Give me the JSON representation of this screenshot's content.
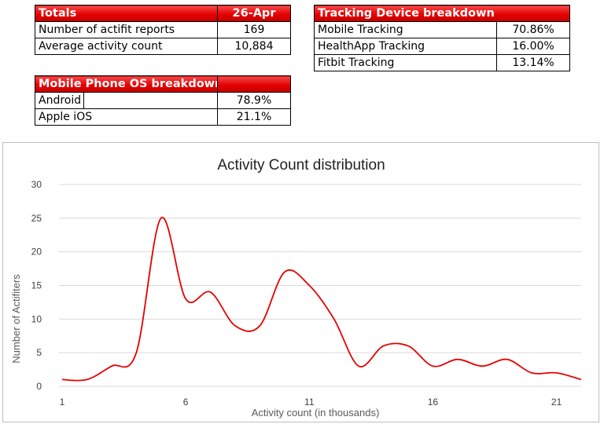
{
  "totals": {
    "header": "Totals",
    "date": "26-Apr",
    "rows": [
      {
        "label": "Number of actifit reports",
        "value": "169"
      },
      {
        "label": "Average activity count",
        "value": "10,884"
      }
    ]
  },
  "os_breakdown": {
    "header": "Mobile Phone OS breakdown",
    "rows": [
      {
        "label": "Android",
        "value": "78.9%"
      },
      {
        "label": "Apple iOS",
        "value": "21.1%"
      }
    ]
  },
  "tracking": {
    "header": "Tracking Device breakdown",
    "rows": [
      {
        "label": "Mobile Tracking",
        "value": "70.86%"
      },
      {
        "label": "HealthApp Tracking",
        "value": "16.00%"
      },
      {
        "label": "Fitbit Tracking",
        "value": "13.14%"
      }
    ]
  },
  "colors": {
    "header_red": "#e60000",
    "line": "#e60000",
    "grid": "#d9d9d9"
  },
  "chart_data": {
    "type": "line",
    "smooth": true,
    "title": "Activity Count distribution",
    "xlabel": "Activity count (in thousands)",
    "ylabel": "Number of Actifiters",
    "x_tick_labels": [
      "1",
      "6",
      "11",
      "16",
      "21"
    ],
    "y_ticks": [
      0,
      5,
      10,
      15,
      20,
      25,
      30
    ],
    "ylim": [
      0,
      30
    ],
    "grid": true,
    "legend": "none",
    "series": [
      {
        "x": [
          1,
          2,
          3,
          4,
          5,
          6,
          7,
          8,
          9,
          10,
          11,
          12,
          13,
          14,
          15,
          16,
          17,
          18,
          19,
          20,
          21,
          22
        ],
        "values": [
          1,
          1,
          3,
          5,
          25,
          13,
          14,
          9,
          9,
          17,
          15,
          10,
          3,
          6,
          6,
          3,
          4,
          3,
          4,
          2,
          2,
          1
        ]
      }
    ]
  }
}
